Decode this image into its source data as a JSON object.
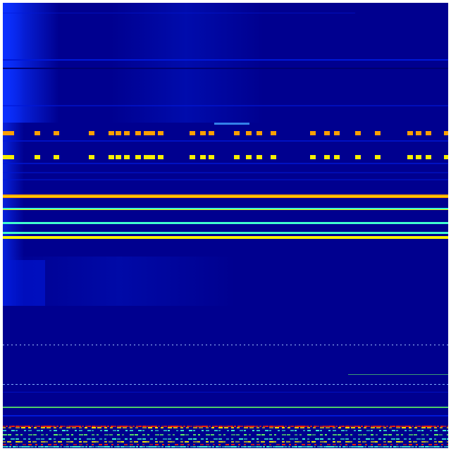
{
  "image": {
    "type": "heatmap",
    "colormap": "jet",
    "colors": {
      "background": "#00008f",
      "bright_blue": "#0a30ff",
      "mid_blue": "#0018d8",
      "cyan": "#40ffd0",
      "yellow": "#f8f000",
      "orange": "#ffa000",
      "red": "#ff2000",
      "green": "#60ff60"
    }
  }
}
